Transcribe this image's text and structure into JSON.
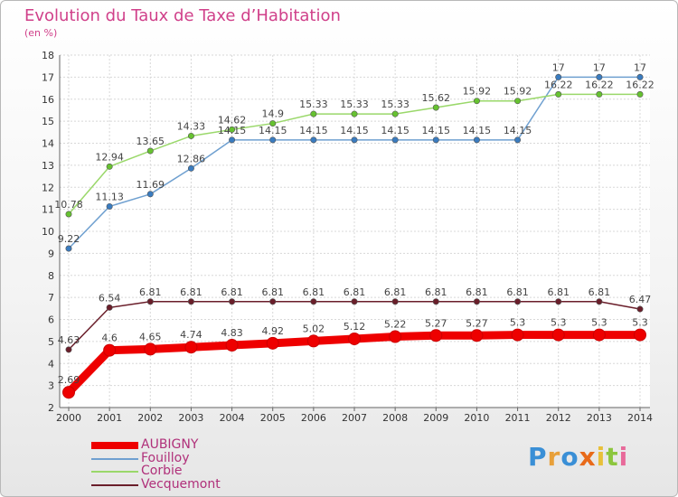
{
  "title": "Evolution du Taux de Taxe d’Habitation",
  "subtitle": "(en %)",
  "logo": {
    "letters": [
      {
        "char": "P",
        "color": "#3a8fd6"
      },
      {
        "char": "r",
        "color": "#e8a03a"
      },
      {
        "char": "o",
        "color": "#3a8fd6"
      },
      {
        "char": "x",
        "color": "#e86a1a"
      },
      {
        "char": "i",
        "color": "#e8c03a"
      },
      {
        "char": "t",
        "color": "#8cc63e"
      },
      {
        "char": "i",
        "color": "#e86a9a"
      }
    ]
  },
  "chart_data": {
    "type": "line",
    "title": "Evolution du Taux de Taxe d’Habitation",
    "ylabel": "(en %)",
    "ylim": [
      2,
      18
    ],
    "yticks": [
      "2",
      "3",
      "4",
      "5",
      "6",
      "7",
      "8",
      "9",
      "10",
      "11",
      "12",
      "13",
      "14",
      "15",
      "16",
      "17",
      "18"
    ],
    "x": [
      "2000",
      "2001",
      "2002",
      "2003",
      "2004",
      "2005",
      "2006",
      "2007",
      "2008",
      "2009",
      "2010",
      "2011",
      "2012",
      "2013",
      "2014"
    ],
    "grid": true,
    "legend_position": "bottom-left",
    "series": [
      {
        "name": "AUBIGNY",
        "color": "#ee0000",
        "bold": true,
        "values": [
          2.69,
          4.6,
          4.65,
          4.74,
          4.83,
          4.92,
          5.02,
          5.12,
          5.22,
          5.27,
          5.27,
          5.3,
          5.3,
          5.3,
          5.3
        ],
        "labels": [
          "2.69",
          "4.6",
          "4.65",
          "4.74",
          "4.83",
          "4.92",
          "5.02",
          "5.12",
          "5.22",
          "5.27",
          "5.27",
          "5.3",
          "5.3",
          "5.3",
          "5.3"
        ]
      },
      {
        "name": "Fouilloy",
        "color": "#6fa0d0",
        "point_color": "#3a7cc0",
        "values": [
          9.22,
          11.13,
          11.69,
          12.86,
          14.15,
          14.15,
          14.15,
          14.15,
          14.15,
          14.15,
          14.15,
          14.15,
          17,
          17,
          17
        ],
        "labels": [
          "9.22",
          "11.13",
          "11.69",
          "12.86",
          "14.15",
          "14.15",
          "14.15",
          "14.15",
          "14.15",
          "14.15",
          "14.15",
          "14.15",
          "17",
          "17",
          "17"
        ]
      },
      {
        "name": "Corbie",
        "color": "#9ad86a",
        "point_color": "#66c230",
        "values": [
          10.78,
          12.94,
          13.65,
          14.33,
          14.62,
          14.9,
          15.33,
          15.33,
          15.33,
          15.62,
          15.92,
          15.92,
          16.22,
          16.22,
          16.22
        ],
        "labels": [
          "10.78",
          "12.94",
          "13.65",
          "14.33",
          "14.62",
          "14.9",
          "15.33",
          "15.33",
          "15.33",
          "15.62",
          "15.92",
          "15.92",
          "16.22",
          "16.22",
          "16.22"
        ]
      },
      {
        "name": "Vecquemont",
        "color": "#6a1e2a",
        "point_color": "#6a1e2a",
        "values": [
          4.63,
          6.54,
          6.81,
          6.81,
          6.81,
          6.81,
          6.81,
          6.81,
          6.81,
          6.81,
          6.81,
          6.81,
          6.81,
          6.81,
          6.47
        ],
        "labels": [
          "4.63",
          "6.54",
          "6.81",
          "6.81",
          "6.81",
          "6.81",
          "6.81",
          "6.81",
          "6.81",
          "6.81",
          "6.81",
          "6.81",
          "6.81",
          "6.81",
          "6.47"
        ]
      }
    ]
  }
}
